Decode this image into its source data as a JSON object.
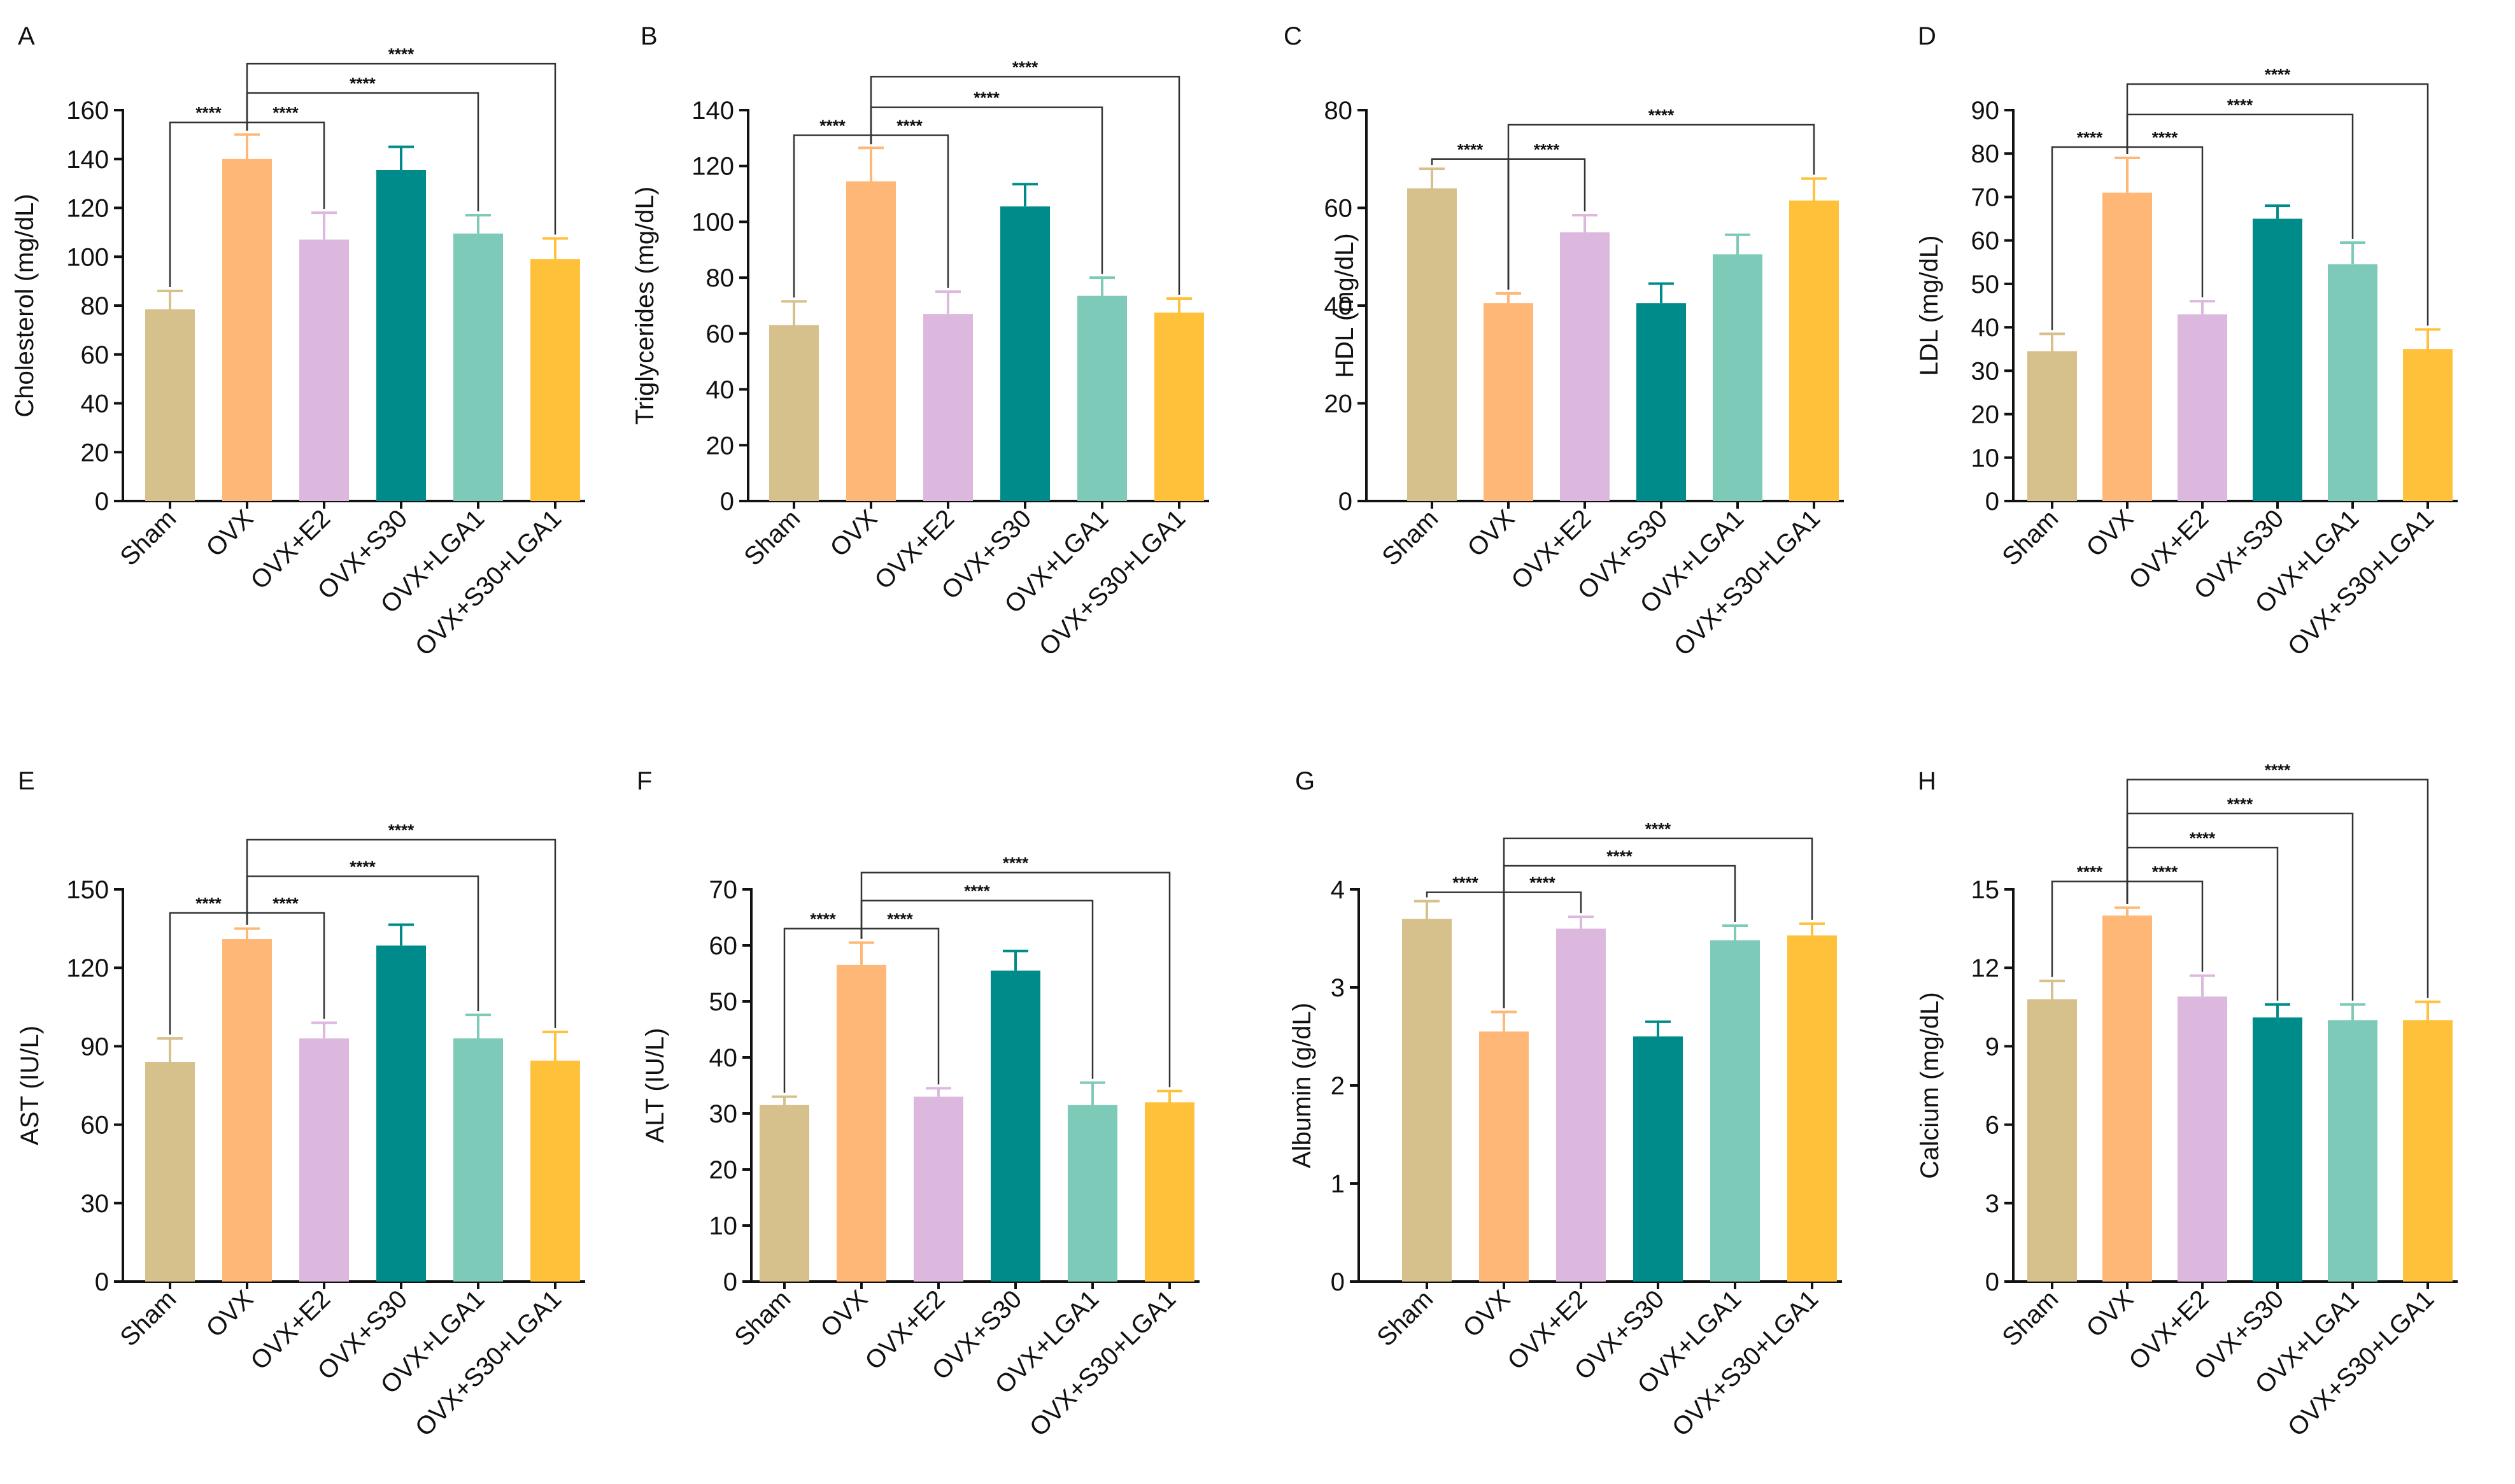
{
  "categories": [
    "Sham",
    "OVX",
    "OVX+E2",
    "OVX+S30",
    "OVX+LGA1",
    "OVX+S30+LGA1"
  ],
  "colors": {
    "bars": [
      "#D6C08B",
      "#FFB777",
      "#DDB8DE",
      "#008B8B",
      "#7ECAB8",
      "#FFC03A"
    ],
    "errors": [
      "#D6C08B",
      "#FFB777",
      "#DDB8DE",
      "#008B8B",
      "#7ECAB8",
      "#FFC03A"
    ]
  },
  "chart_data": [
    {
      "panel": "A",
      "type": "bar",
      "ylabel": "Cholesterol (mg/dL)",
      "ylim": [
        0,
        160
      ],
      "yticks": [
        0,
        20,
        40,
        60,
        80,
        100,
        120,
        140,
        160
      ],
      "values": [
        78.5,
        140,
        107,
        135.5,
        109.5,
        99
      ],
      "errors": [
        7.5,
        10,
        11,
        9.5,
        7.5,
        8.5
      ],
      "significance": [
        {
          "from": 0,
          "to": 1,
          "label": "****",
          "y": 155
        },
        {
          "from": 1,
          "to": 2,
          "label": "****",
          "y": 155
        },
        {
          "from": 1,
          "to": 4,
          "label": "****",
          "y": 167
        },
        {
          "from": 1,
          "to": 5,
          "label": "****",
          "y": 179
        }
      ]
    },
    {
      "panel": "B",
      "type": "bar",
      "ylabel": "Triglycerides (mg/dL)",
      "ylim": [
        0,
        140
      ],
      "yticks": [
        0,
        20,
        40,
        60,
        80,
        100,
        120,
        140
      ],
      "values": [
        63,
        114.5,
        67,
        105.5,
        73.5,
        67.5
      ],
      "errors": [
        8.5,
        12,
        8,
        8,
        6.5,
        5
      ],
      "significance": [
        {
          "from": 0,
          "to": 1,
          "label": "****",
          "y": 131
        },
        {
          "from": 1,
          "to": 2,
          "label": "****",
          "y": 131
        },
        {
          "from": 1,
          "to": 4,
          "label": "****",
          "y": 141
        },
        {
          "from": 1,
          "to": 5,
          "label": "****",
          "y": 152
        }
      ]
    },
    {
      "panel": "C",
      "type": "bar",
      "ylabel": "HDL (mg/dL)",
      "ylim": [
        0,
        80
      ],
      "yticks": [
        0,
        20,
        40,
        60,
        80
      ],
      "values": [
        64,
        40.5,
        55,
        40.5,
        50.5,
        61.5
      ],
      "errors": [
        4,
        2,
        3.5,
        4,
        4,
        4.5
      ],
      "significance": [
        {
          "from": 0,
          "to": 1,
          "label": "****",
          "y": 70
        },
        {
          "from": 1,
          "to": 2,
          "label": "****",
          "y": 70
        },
        {
          "from": 1,
          "to": 5,
          "label": "****",
          "y": 77
        }
      ]
    },
    {
      "panel": "D",
      "type": "bar",
      "ylabel": "LDL (mg/dL)",
      "ylim": [
        0,
        90
      ],
      "yticks": [
        0,
        10,
        20,
        30,
        40,
        50,
        60,
        70,
        80,
        90
      ],
      "values": [
        34.5,
        71,
        43,
        65,
        54.5,
        35
      ],
      "errors": [
        4,
        8,
        3,
        3,
        5,
        4.5
      ],
      "significance": [
        {
          "from": 0,
          "to": 1,
          "label": "****",
          "y": 81.5
        },
        {
          "from": 1,
          "to": 2,
          "label": "****",
          "y": 81.5
        },
        {
          "from": 1,
          "to": 4,
          "label": "****",
          "y": 89
        },
        {
          "from": 1,
          "to": 5,
          "label": "****",
          "y": 96
        }
      ]
    },
    {
      "panel": "E",
      "type": "bar",
      "ylabel": "AST (IU/L)",
      "ylim": [
        0,
        150
      ],
      "yticks": [
        0,
        30,
        60,
        90,
        120,
        150
      ],
      "values": [
        84,
        131,
        93,
        128.5,
        93,
        84.5
      ],
      "errors": [
        9,
        4,
        6,
        8,
        9,
        11
      ],
      "significance": [
        {
          "from": 0,
          "to": 1,
          "label": "****",
          "y": 141
        },
        {
          "from": 1,
          "to": 2,
          "label": "****",
          "y": 141
        },
        {
          "from": 1,
          "to": 4,
          "label": "****",
          "y": 155
        },
        {
          "from": 1,
          "to": 5,
          "label": "****",
          "y": 169
        }
      ]
    },
    {
      "panel": "F",
      "type": "bar",
      "ylabel": "ALT (IU/L)",
      "ylim": [
        0,
        70
      ],
      "yticks": [
        0,
        10,
        20,
        30,
        40,
        50,
        60,
        70
      ],
      "values": [
        31.5,
        56.5,
        33,
        55.5,
        31.5,
        32
      ],
      "errors": [
        1.5,
        4,
        1.5,
        3.5,
        4,
        2
      ],
      "significance": [
        {
          "from": 0,
          "to": 1,
          "label": "****",
          "y": 63
        },
        {
          "from": 1,
          "to": 2,
          "label": "****",
          "y": 63
        },
        {
          "from": 1,
          "to": 4,
          "label": "****",
          "y": 68
        },
        {
          "from": 1,
          "to": 5,
          "label": "****",
          "y": 73
        }
      ]
    },
    {
      "panel": "G",
      "type": "bar",
      "ylabel": "Albumin (g/dL)",
      "ylim": [
        0,
        4
      ],
      "yticks": [
        0,
        1,
        2,
        3,
        4
      ],
      "values": [
        3.7,
        2.55,
        3.6,
        2.5,
        3.48,
        3.53
      ],
      "errors": [
        0.18,
        0.2,
        0.12,
        0.15,
        0.15,
        0.12
      ],
      "significance": [
        {
          "from": 0,
          "to": 1,
          "label": "****",
          "y": 3.97
        },
        {
          "from": 1,
          "to": 2,
          "label": "****",
          "y": 3.97
        },
        {
          "from": 1,
          "to": 4,
          "label": "****",
          "y": 4.24
        },
        {
          "from": 1,
          "to": 5,
          "label": "****",
          "y": 4.52
        }
      ]
    },
    {
      "panel": "H",
      "type": "bar",
      "ylabel": "Calcium (mg/dL)",
      "ylim": [
        0,
        15
      ],
      "yticks": [
        0,
        3,
        6,
        9,
        12,
        15
      ],
      "values": [
        10.8,
        14,
        10.9,
        10.1,
        10,
        10
      ],
      "errors": [
        0.7,
        0.3,
        0.8,
        0.5,
        0.6,
        0.7
      ],
      "significance": [
        {
          "from": 0,
          "to": 1,
          "label": "****",
          "y": 15.3
        },
        {
          "from": 1,
          "to": 2,
          "label": "****",
          "y": 15.3
        },
        {
          "from": 1,
          "to": 3,
          "label": "****",
          "y": 16.6
        },
        {
          "from": 1,
          "to": 4,
          "label": "****",
          "y": 17.9
        },
        {
          "from": 1,
          "to": 5,
          "label": "****",
          "y": 19.2
        }
      ]
    }
  ]
}
